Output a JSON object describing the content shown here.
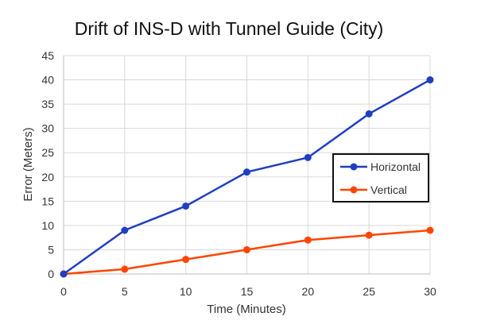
{
  "chart_data": {
    "type": "line",
    "title": "Drift of INS-D with Tunnel Guide (City)",
    "xlabel": "Time (Minutes)",
    "ylabel": "Error (Meters)",
    "x": [
      0,
      5,
      10,
      15,
      20,
      25,
      30
    ],
    "xlim": [
      0,
      30
    ],
    "ylim": [
      0,
      45
    ],
    "xticks": [
      "0",
      "5",
      "10",
      "15",
      "20",
      "25",
      "30"
    ],
    "yticks": [
      "0",
      "5",
      "10",
      "15",
      "20",
      "25",
      "30",
      "35",
      "40",
      "45"
    ],
    "grid": true,
    "legend_position": "right",
    "series": [
      {
        "name": "Horizontal",
        "color": "#1f3fbf",
        "values": [
          0,
          9,
          14,
          21,
          24,
          33,
          40
        ]
      },
      {
        "name": "Vertical",
        "color": "#ff4500",
        "values": [
          0,
          1,
          3,
          5,
          7,
          8,
          9
        ]
      }
    ]
  }
}
